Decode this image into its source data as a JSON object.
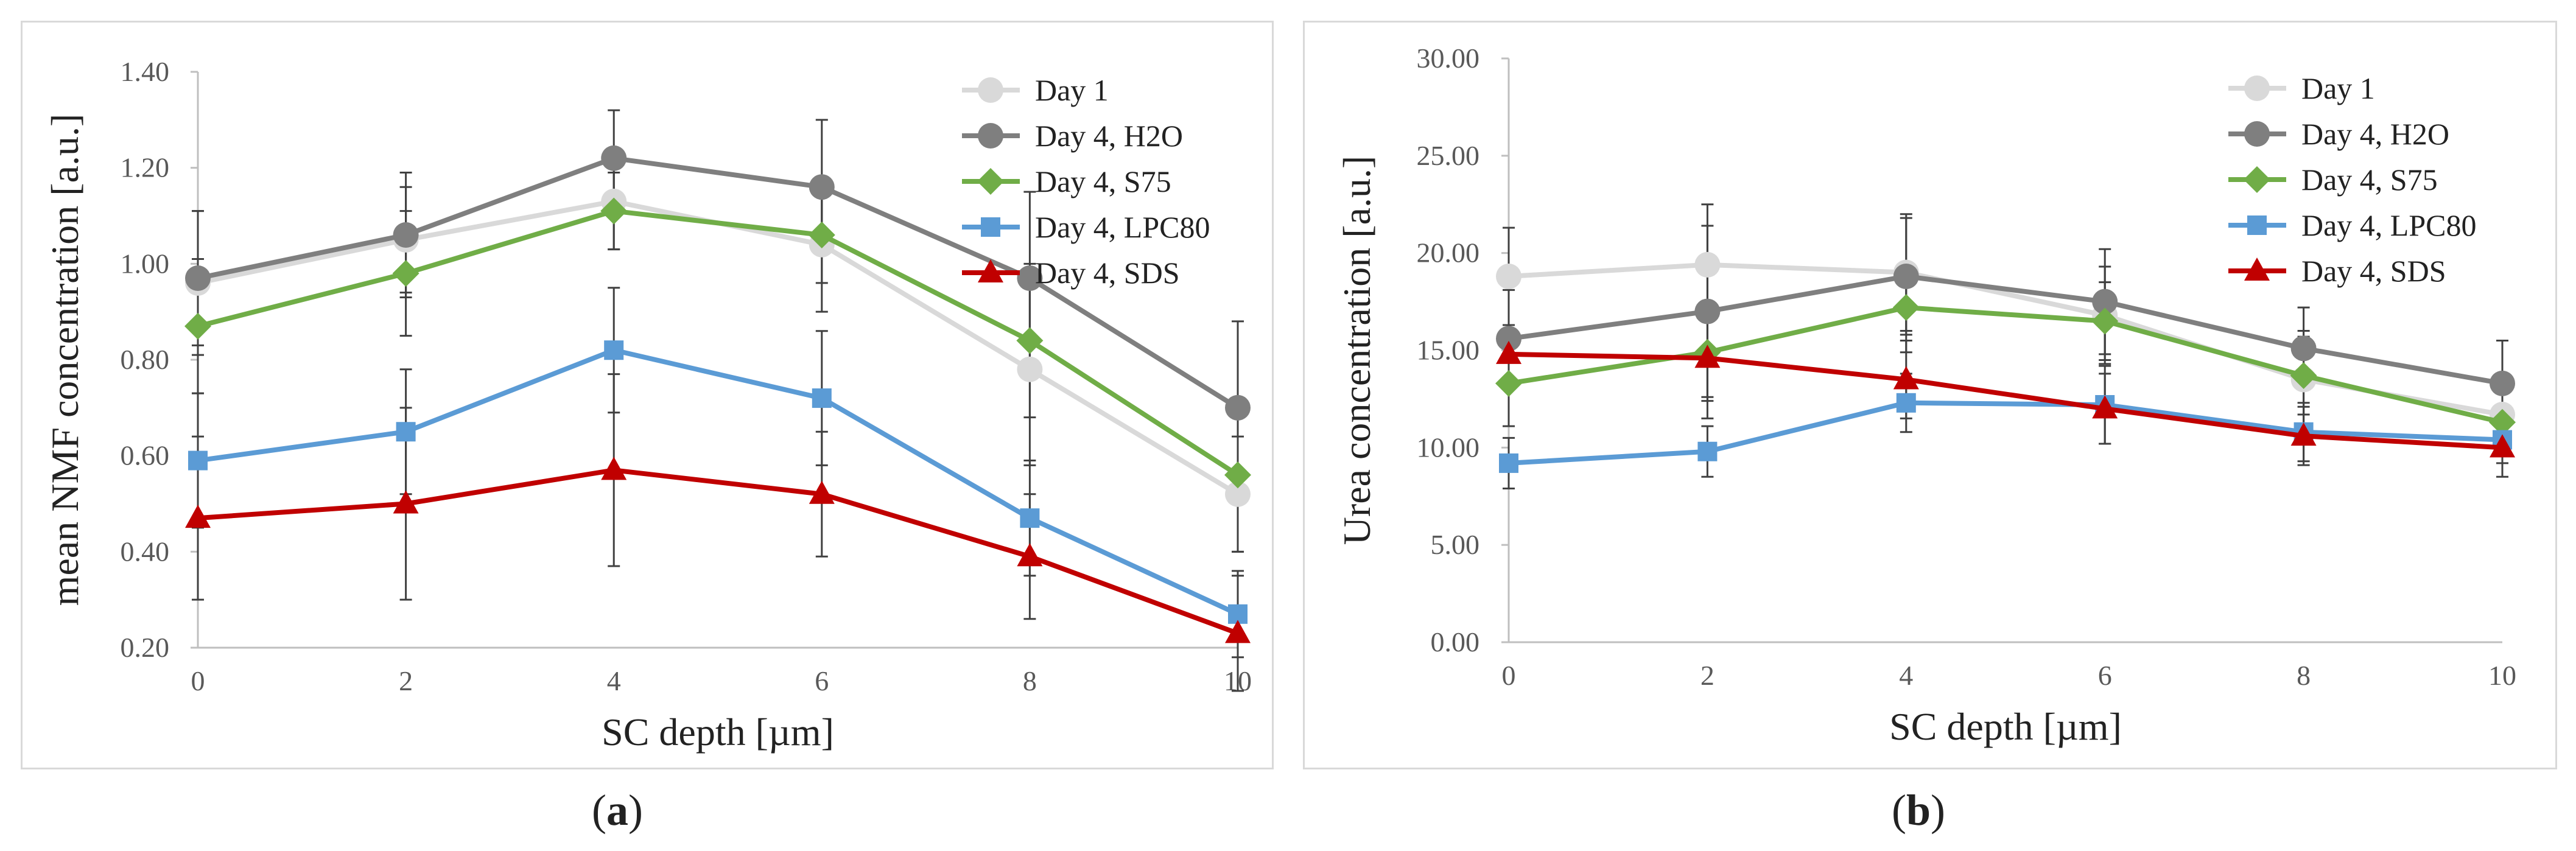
{
  "chart_data": [
    {
      "type": "line",
      "panel": "a",
      "xlabel": "SC depth [µm]",
      "ylabel": "mean NMF concentration [a.u.]",
      "xlim": [
        0,
        10
      ],
      "ylim": [
        0.2,
        1.4
      ],
      "x": [
        0,
        2,
        4,
        6,
        8,
        10
      ],
      "x_tick_labels": [
        "0",
        "2",
        "4",
        "6",
        "8",
        "10"
      ],
      "y_ticks": [
        0.2,
        0.4,
        0.6,
        0.8,
        1.0,
        1.2,
        1.4
      ],
      "y_tick_labels": [
        "0.20",
        "0.40",
        "0.60",
        "0.80",
        "1.00",
        "1.20",
        "1.40"
      ],
      "grid": false,
      "legend_position": "top-right",
      "series": [
        {
          "name": "Day 1",
          "color": "#d9d9d9",
          "marker": "circle",
          "values": [
            0.96,
            1.05,
            1.13,
            1.04,
            0.78,
            0.52
          ],
          "errors": [
            0.15,
            0.11,
            0.1,
            0.14,
            0.2,
            0.12
          ]
        },
        {
          "name": "Day 4, H2O",
          "color": "#7f7f7f",
          "marker": "circle",
          "values": [
            0.97,
            1.06,
            1.22,
            1.16,
            0.97,
            0.7
          ],
          "errors": [
            0.14,
            0.13,
            0.1,
            0.14,
            0.18,
            0.18
          ]
        },
        {
          "name": "Day 4, S75",
          "color": "#70ad47",
          "marker": "diamond",
          "values": [
            0.87,
            0.98,
            1.11,
            1.06,
            0.84,
            0.56
          ],
          "errors": [
            0.14,
            0.13,
            0.08,
            0.1,
            0.16,
            0.16
          ]
        },
        {
          "name": "Day 4, LPC80",
          "color": "#5b9bd5",
          "marker": "square",
          "values": [
            0.59,
            0.65,
            0.82,
            0.72,
            0.47,
            0.27
          ],
          "errors": [
            0.14,
            0.13,
            0.13,
            0.14,
            0.12,
            0.09
          ]
        },
        {
          "name": "Day 4, SDS",
          "color": "#c00000",
          "marker": "triangle",
          "values": [
            0.47,
            0.5,
            0.57,
            0.52,
            0.39,
            0.23
          ],
          "errors": [
            0.17,
            0.2,
            0.2,
            0.13,
            0.13,
            0.12
          ]
        }
      ]
    },
    {
      "type": "line",
      "panel": "b",
      "xlabel": "SC depth [µm]",
      "ylabel": "Urea concentration [a.u.]",
      "xlim": [
        0,
        10
      ],
      "ylim": [
        0,
        30
      ],
      "x": [
        0,
        2,
        4,
        6,
        8,
        10
      ],
      "x_tick_labels": [
        "0",
        "2",
        "4",
        "6",
        "8",
        "10"
      ],
      "y_ticks": [
        0,
        5,
        10,
        15,
        20,
        25,
        30
      ],
      "y_tick_labels": [
        "0.00",
        "5.00",
        "10.00",
        "15.00",
        "20.00",
        "25.00",
        "30.00"
      ],
      "grid": false,
      "legend_position": "top-right",
      "series": [
        {
          "name": "Day 1",
          "color": "#d9d9d9",
          "marker": "circle",
          "values": [
            18.8,
            19.4,
            19.0,
            16.8,
            13.5,
            11.7
          ],
          "errors": [
            2.5,
            2.0,
            3.0,
            2.5,
            2.5,
            2.0
          ]
        },
        {
          "name": "Day 4, H2O",
          "color": "#7f7f7f",
          "marker": "circle",
          "values": [
            15.6,
            17.0,
            18.8,
            17.5,
            15.1,
            13.3
          ],
          "errors": [
            2.5,
            5.5,
            3.0,
            2.7,
            2.1,
            2.2
          ]
        },
        {
          "name": "Day 4, S75",
          "color": "#70ad47",
          "marker": "diamond",
          "values": [
            13.3,
            14.9,
            17.2,
            16.5,
            13.7,
            11.3
          ],
          "errors": [
            2.2,
            2.5,
            2.3,
            2.0,
            2.0,
            1.5
          ]
        },
        {
          "name": "Day 4, LPC80",
          "color": "#5b9bd5",
          "marker": "square",
          "values": [
            9.2,
            9.8,
            12.3,
            12.2,
            10.8,
            10.4
          ],
          "errors": [
            1.3,
            1.3,
            1.5,
            2.0,
            1.5,
            1.2
          ]
        },
        {
          "name": "Day 4, SDS",
          "color": "#c00000",
          "marker": "triangle",
          "values": [
            14.8,
            14.6,
            13.5,
            12.0,
            10.6,
            10.0
          ],
          "errors": [
            1.5,
            2.0,
            2.0,
            1.8,
            1.5,
            1.5
          ]
        }
      ]
    }
  ],
  "captions": {
    "a": {
      "open": "(",
      "letter": "a",
      "close": ")"
    },
    "b": {
      "open": "(",
      "letter": "b",
      "close": ")"
    }
  }
}
